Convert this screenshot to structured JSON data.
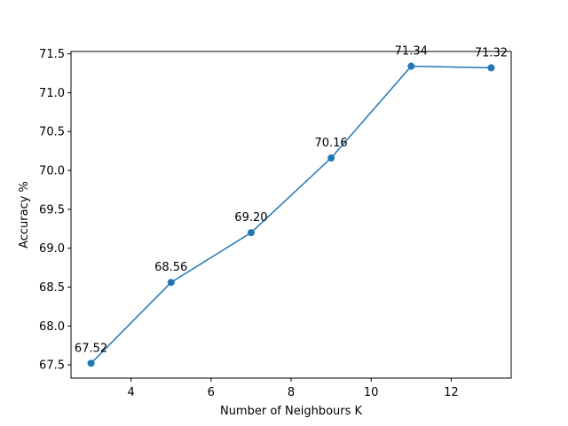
{
  "chart_data": {
    "type": "line",
    "title": "",
    "xlabel": "Number of Neighbours K",
    "ylabel": "Accuracy %",
    "x": [
      3,
      5,
      7,
      9,
      11,
      13
    ],
    "series": [
      {
        "values": [
          67.52,
          68.56,
          69.2,
          70.16,
          71.34,
          71.32
        ],
        "labels": [
          "67.52",
          "68.56",
          "69.20",
          "70.16",
          "71.34",
          "71.32"
        ],
        "color": "#1f77b4",
        "marker": "circle"
      }
    ],
    "xlim": [
      2.5,
      13.5
    ],
    "ylim": [
      67.33,
      71.53
    ],
    "xticks": [
      4,
      6,
      8,
      10,
      12
    ],
    "xtick_labels": [
      "4",
      "6",
      "8",
      "10",
      "12"
    ],
    "yticks": [
      67.5,
      68.0,
      68.5,
      69.0,
      69.5,
      70.0,
      70.5,
      71.0,
      71.5
    ],
    "ytick_labels": [
      "67.5",
      "68.0",
      "68.5",
      "69.0",
      "69.5",
      "70.0",
      "70.5",
      "71.0",
      "71.5"
    ],
    "grid": false,
    "legend": "none"
  }
}
